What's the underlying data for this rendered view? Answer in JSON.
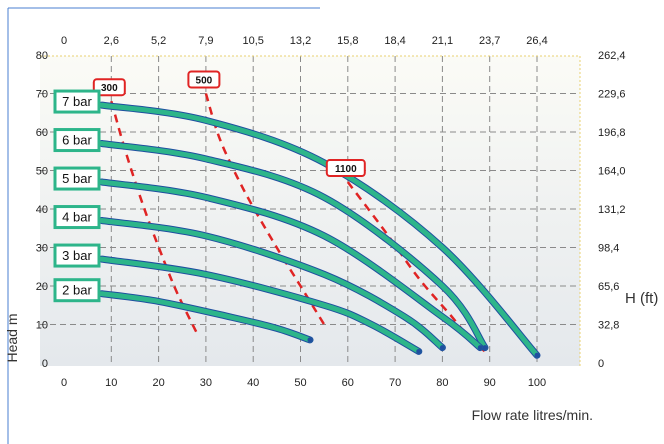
{
  "chart_data": {
    "type": "line",
    "xlabel": "Flow rate litres/min.",
    "ylabel": "Head m",
    "y2label": "H (ft)",
    "xlim": [
      0,
      108
    ],
    "ylim": [
      0,
      80
    ],
    "x_ticks": [
      "0",
      "10",
      "20",
      "30",
      "40",
      "50",
      "60",
      "70",
      "80",
      "90",
      "100"
    ],
    "x_top_ticks": [
      "0",
      "2,6",
      "5,2",
      "7,9",
      "10,5",
      "13,2",
      "15,8",
      "18,4",
      "21,1",
      "23,7",
      "26,4"
    ],
    "y_ticks": [
      "0",
      "10",
      "20",
      "30",
      "40",
      "50",
      "60",
      "70",
      "80"
    ],
    "y_right_ticks": [
      "0",
      "32,8",
      "65,6",
      "98,4",
      "131,2",
      "164,0",
      "196,8",
      "229,6",
      "262,4"
    ],
    "grid": true,
    "series": [
      {
        "name": "7 bar",
        "x": [
          8,
          30,
          55,
          80,
          100
        ],
        "y": [
          67,
          63,
          52,
          30,
          2
        ]
      },
      {
        "name": "6 bar",
        "x": [
          8,
          30,
          55,
          80,
          89
        ],
        "y": [
          57,
          53,
          43,
          20,
          4
        ]
      },
      {
        "name": "5 bar",
        "x": [
          8,
          30,
          55,
          80,
          88
        ],
        "y": [
          47,
          43,
          33,
          12,
          4
        ]
      },
      {
        "name": "4 bar",
        "x": [
          8,
          30,
          55,
          72,
          80
        ],
        "y": [
          37,
          33,
          23,
          12,
          4
        ]
      },
      {
        "name": "3 bar",
        "x": [
          8,
          30,
          55,
          65,
          75
        ],
        "y": [
          27,
          23,
          15,
          10,
          3
        ]
      },
      {
        "name": "2 bar",
        "x": [
          8,
          20,
          35,
          45,
          52
        ],
        "y": [
          18,
          16,
          12,
          9,
          6
        ]
      }
    ],
    "speed_curves": [
      {
        "name": "300",
        "x": [
          10,
          13,
          17,
          21,
          24,
          28
        ],
        "y": [
          68,
          55,
          40,
          27,
          18,
          8
        ]
      },
      {
        "name": "500",
        "x": [
          30,
          33,
          38,
          44,
          50,
          55
        ],
        "y": [
          70,
          58,
          45,
          32,
          20,
          10
        ]
      },
      {
        "name": "1100",
        "x": [
          60,
          68,
          75,
          82,
          86,
          89
        ],
        "y": [
          47,
          34,
          22,
          12,
          6,
          3
        ]
      }
    ],
    "colors": {
      "curve": "#2db58a",
      "curve_edge": "#1f4fa0",
      "speed": "#e02424",
      "label_border": "#2db58a",
      "tab": "#1f3f8f"
    }
  }
}
